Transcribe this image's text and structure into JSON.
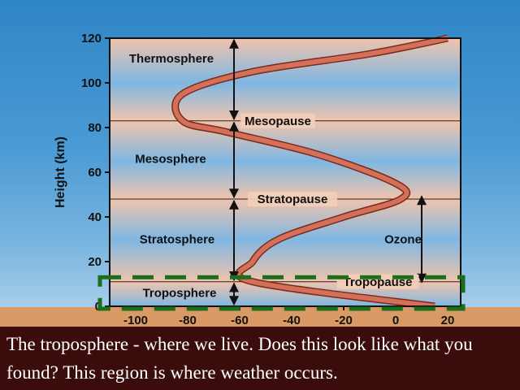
{
  "diagram": {
    "y_axis": {
      "title": "Height (km)",
      "min": 0,
      "max": 120,
      "ticks": [
        0,
        20,
        40,
        60,
        80,
        100,
        120
      ]
    },
    "x_axis": {
      "min": -110,
      "max": 25,
      "ticks": [
        -100,
        -80,
        -60,
        -40,
        -20,
        0,
        20
      ]
    },
    "layers": [
      {
        "name": "Thermosphere",
        "km_from": 83,
        "km_to": 120
      },
      {
        "name": "Mesosphere",
        "km_from": 48,
        "km_to": 83
      },
      {
        "name": "Stratosphere",
        "km_from": 11,
        "km_to": 48
      },
      {
        "name": "Troposphere",
        "km_from": 0,
        "km_to": 11
      }
    ],
    "boundaries": [
      {
        "name": "Mesopause",
        "km": 83
      },
      {
        "name": "Stratopause",
        "km": 48
      },
      {
        "name": "Tropopause",
        "km": 11
      }
    ],
    "ozone": {
      "label": "Ozone",
      "km_from": 10,
      "km_to": 50
    },
    "temperature_profile": [
      {
        "t": 15,
        "h": 0
      },
      {
        "t": -55,
        "h": 11
      },
      {
        "t": -55,
        "h": 20
      },
      {
        "t": -45,
        "h": 30
      },
      {
        "t": -20,
        "h": 40
      },
      {
        "t": 2,
        "h": 48
      },
      {
        "t": 0,
        "h": 55
      },
      {
        "t": -30,
        "h": 68
      },
      {
        "t": -65,
        "h": 78
      },
      {
        "t": -82,
        "h": 83
      },
      {
        "t": -82,
        "h": 95
      },
      {
        "t": -55,
        "h": 105
      },
      {
        "t": -10,
        "h": 113
      },
      {
        "t": 20,
        "h": 120
      }
    ]
  },
  "caption": "The troposphere - where we live. Does this look like what you found? This region is where weather occurs.",
  "colors": {
    "sky_top": "#2f86c6",
    "band_light": "#f0c4ad",
    "band_blue": "#7fb7e2",
    "curve": "#d4705a",
    "highlight": "#1b6e1b",
    "ground": "#d99a66",
    "caption_bg": "#3b0c0c"
  }
}
